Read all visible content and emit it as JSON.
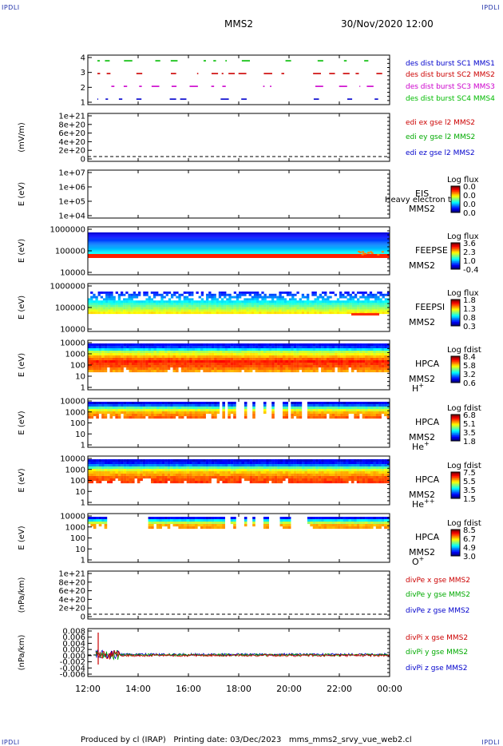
{
  "header": {
    "corner_left": "IPDLI",
    "corner_right": "IPDLI",
    "spacecraft": "MMS2",
    "datetime": "30/Nov/2020 12:00"
  },
  "footer": {
    "corner_left": "IPDLI",
    "corner_right": "IPDLI",
    "text": "Produced by cl (IRAP)   Printing date: 03/Dec/2023   mms_mms2_srvy_vue_web2.cl"
  },
  "x_axis": {
    "ticks": [
      "12:00",
      "14:00",
      "16:00",
      "18:00",
      "20:00",
      "22:00",
      "00:00"
    ],
    "range_hours": [
      12,
      24
    ]
  },
  "colors": {
    "sc1": "#0000cc",
    "sc2": "#cc0000",
    "sc3": "#cc00cc",
    "sc4": "#00bb00",
    "x": "#cc0000",
    "y": "#00aa00",
    "z": "#0000cc"
  },
  "chart_data": [
    {
      "type": "line",
      "panel": "burst",
      "ylabel": "",
      "yticks": [
        "1",
        "2",
        "3",
        "4"
      ],
      "legend": [
        "des dist burst SC1 MMS1",
        "des dist burst SC2 MMS2",
        "des dist burst SC3 MMS3",
        "des dist burst SC4 MMS4"
      ],
      "legend_colors": [
        "#0000cc",
        "#cc0000",
        "#cc00cc",
        "#00bb00"
      ]
    },
    {
      "type": "line",
      "panel": "edi_e",
      "ylabel": "(mV/m)",
      "yticks": [
        "0",
        "2e+20",
        "4e+20",
        "6e+20",
        "8e+20",
        "1e+21"
      ],
      "legend": [
        "edi ex gse l2 MMS2",
        "edi ey gse l2 MMS2",
        "edi ez gse l2 MMS2"
      ],
      "legend_colors": [
        "#cc0000",
        "#00aa00",
        "#0000cc"
      ]
    },
    {
      "type": "heatmap",
      "panel": "eis",
      "ylabel": "E (eV)",
      "yticks": [
        "1e+04",
        "1e+05",
        "1e+06",
        "1e+07"
      ],
      "side_labels": [
        "EIS",
        "MMS2"
      ],
      "overlay_text": "Heavy electron to",
      "colorbar_title": "Log flux",
      "colorbar_ticks": [
        "0.0",
        "0.0",
        "0.0",
        "0.0"
      ]
    },
    {
      "type": "heatmap",
      "panel": "feepse",
      "ylabel": "E (eV)",
      "yticks": [
        "10000",
        "100000",
        "1000000"
      ],
      "side_labels": [
        "FEEPSE",
        "MMS2"
      ],
      "colorbar_title": "Log flux",
      "colorbar_ticks": [
        "3.6",
        "2.3",
        "1.0",
        "-0.4"
      ]
    },
    {
      "type": "heatmap",
      "panel": "feepsi",
      "ylabel": "E (eV)",
      "yticks": [
        "10000",
        "100000",
        "1000000"
      ],
      "side_labels": [
        "FEEPSI",
        "MMS2"
      ],
      "colorbar_title": "Log flux",
      "colorbar_ticks": [
        "1.8",
        "1.3",
        "0.8",
        "0.3"
      ]
    },
    {
      "type": "heatmap",
      "panel": "hpca_h",
      "ylabel": "E (eV)",
      "yticks": [
        "1",
        "10",
        "100",
        "1000",
        "10000"
      ],
      "side_labels": [
        "HPCA",
        "MMS2"
      ],
      "species": "H",
      "species_sup": "+",
      "colorbar_title": "Log fdist",
      "colorbar_ticks": [
        "8.4",
        "5.8",
        "3.2",
        "0.6"
      ]
    },
    {
      "type": "heatmap",
      "panel": "hpca_he",
      "ylabel": "E (eV)",
      "yticks": [
        "1",
        "10",
        "100",
        "1000",
        "10000"
      ],
      "side_labels": [
        "HPCA",
        "MMS2"
      ],
      "species": "He",
      "species_sup": "+",
      "colorbar_title": "Log fdist",
      "colorbar_ticks": [
        "6.8",
        "5.1",
        "3.5",
        "1.8"
      ]
    },
    {
      "type": "heatmap",
      "panel": "hpca_hepp",
      "ylabel": "E (eV)",
      "yticks": [
        "1",
        "10",
        "100",
        "1000",
        "10000"
      ],
      "side_labels": [
        "HPCA",
        "MMS2"
      ],
      "species": "He",
      "species_sup": "++",
      "colorbar_title": "Log fdist",
      "colorbar_ticks": [
        "7.5",
        "5.5",
        "3.5",
        "1.5"
      ]
    },
    {
      "type": "heatmap",
      "panel": "hpca_o",
      "ylabel": "E (eV)",
      "yticks": [
        "1",
        "10",
        "100",
        "1000",
        "10000"
      ],
      "side_labels": [
        "HPCA",
        "MMS2"
      ],
      "species": "O",
      "species_sup": "+",
      "colorbar_title": "Log fdist",
      "colorbar_ticks": [
        "8.5",
        "6.7",
        "4.9",
        "3.0"
      ]
    },
    {
      "type": "line",
      "panel": "divpe",
      "ylabel": "(nPa/km)",
      "yticks": [
        "0",
        "2e+20",
        "4e+20",
        "6e+20",
        "8e+20",
        "1e+21"
      ],
      "legend": [
        "divPe x gse MMS2",
        "divPe y gse MMS2",
        "divPe z gse MMS2"
      ],
      "legend_colors": [
        "#cc0000",
        "#00aa00",
        "#0000cc"
      ]
    },
    {
      "type": "line",
      "panel": "divpi",
      "ylabel": "(nPa/km)",
      "yticks": [
        "-0.006",
        "-0.004",
        "-0.002",
        "0.000",
        "0.002",
        "0.004",
        "0.006",
        "0.008"
      ],
      "ylim": [
        -0.006,
        0.008
      ],
      "legend": [
        "divPi x gse MMS2",
        "divPi y gse MMS2",
        "divPi z gse MMS2"
      ],
      "legend_colors": [
        "#cc0000",
        "#00aa00",
        "#0000cc"
      ]
    }
  ]
}
